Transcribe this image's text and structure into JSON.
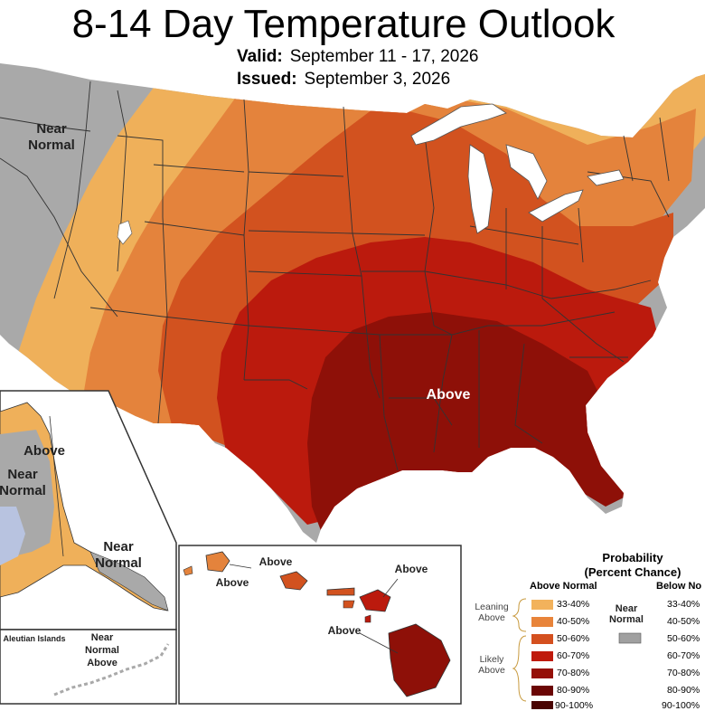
{
  "title": "8-14 Day Temperature Outlook",
  "valid_label": "Valid:",
  "valid_dates": "September 11 - 17, 2026",
  "issued_label": "Issued:",
  "issued_date": "September 3, 2026",
  "map_labels": {
    "conus_near_normal": "Near Normal",
    "conus_above": "Above",
    "alaska_above": "Above",
    "alaska_near_normal_west": "Near Normal",
    "alaska_near_normal_south": "Near Normal",
    "aleutian_islands": "Aleutian Islands",
    "aleutian_near_normal_above": "Near Normal Above",
    "hawaii_kauai": "Above",
    "hawaii_oahu": "Above",
    "hawaii_maui": "Above",
    "hawaii_big_island": "Above"
  },
  "legend": {
    "title_line1": "Probability",
    "title_line2": "(Percent Chance)",
    "above_header": "Above Normal",
    "below_header": "Below No",
    "near_normal_label": "Near Normal",
    "leaning_label": "Leaning Above",
    "likely_label": "Likely Above",
    "above_rows": [
      {
        "label": "33-40%",
        "color": "#f2b25c"
      },
      {
        "label": "40-50%",
        "color": "#e8843a"
      },
      {
        "label": "50-60%",
        "color": "#d4501f"
      },
      {
        "label": "60-70%",
        "color": "#bf1a0c"
      },
      {
        "label": "70-80%",
        "color": "#951008"
      },
      {
        "label": "80-90%",
        "color": "#6b0605"
      },
      {
        "label": "90-100%",
        "color": "#4a0403"
      }
    ],
    "below_rows": [
      "33-40%",
      "40-50%",
      "50-60%",
      "60-70%",
      "70-80%",
      "80-90%",
      "90-100%"
    ],
    "near_normal_color": "#a0a0a0"
  },
  "colors": {
    "near_normal": "#a9a9a9",
    "cat_33_40": "#efb05a",
    "cat_40_50": "#e4833c",
    "cat_50_60": "#d2521f",
    "cat_60_70": "#bb1a0d",
    "cat_70_80": "#8e1008",
    "lakes": "#ffffff",
    "boundaries": "#333333"
  }
}
